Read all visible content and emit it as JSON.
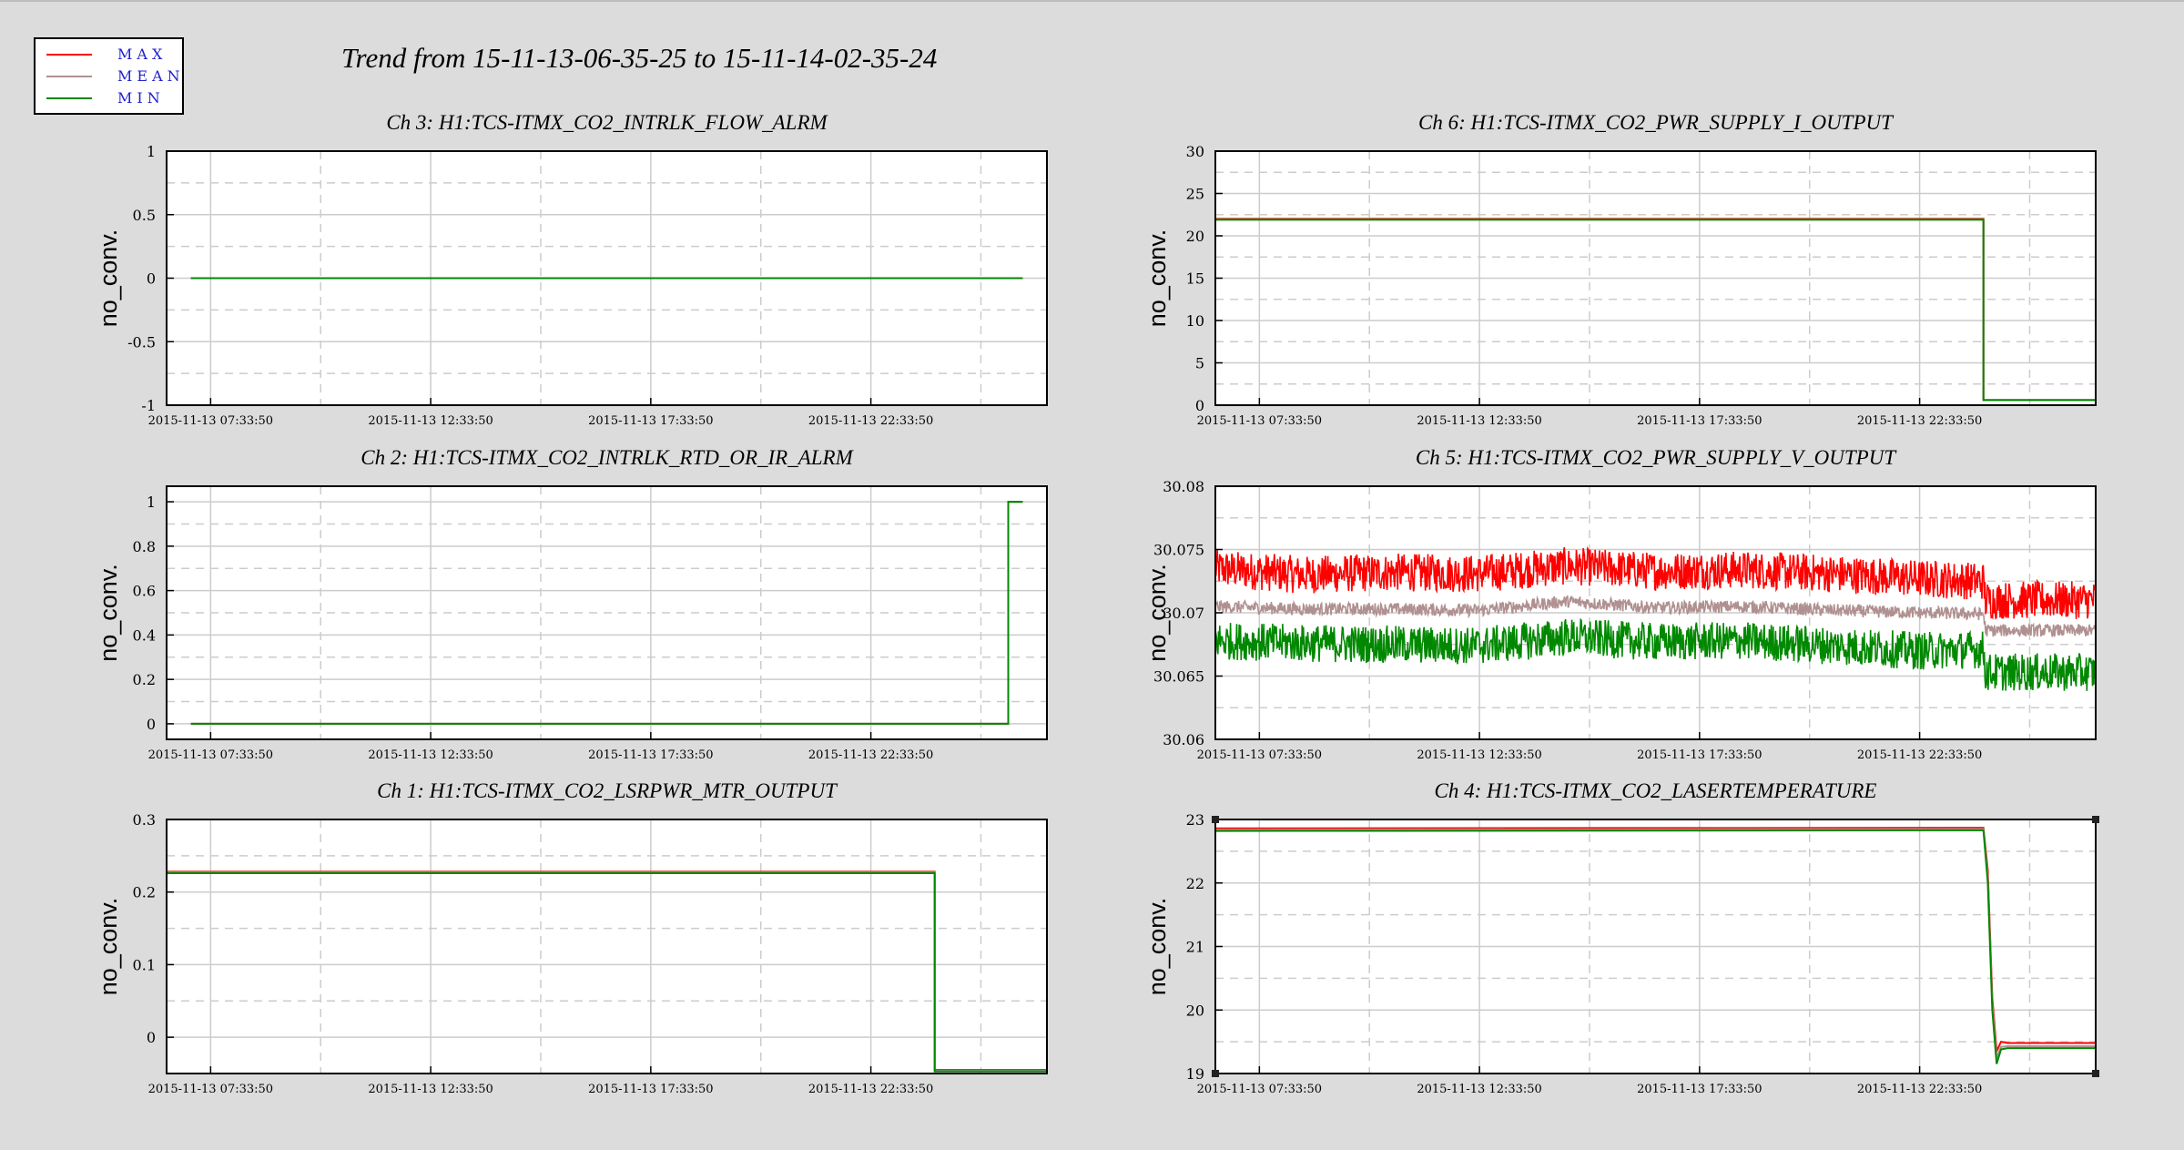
{
  "main_title": "Trend from 15-11-13-06-35-25 to 15-11-14-02-35-24",
  "legend": [
    {
      "label": "MAX",
      "color": "#ff0000"
    },
    {
      "label": "MEAN",
      "color": "#b09090"
    },
    {
      "label": "MIN",
      "color": "#008800"
    }
  ],
  "colors": {
    "max": "#ff0000",
    "mean": "#b09090",
    "min": "#008800",
    "background": "#dcdcdc",
    "grid_solid": "#cccccc",
    "grid_dashed": "#cccccc"
  },
  "chart_data": [
    {
      "type": "line",
      "title": "Ch 3: H1:TCS-ITMX_CO2_INTRLK_FLOW_ALRM",
      "ylabel": "no_conv.",
      "ylim": [
        -1,
        1
      ],
      "yticks": [
        "1",
        "0.5",
        "0",
        "-0.5",
        "-1"
      ],
      "xticks": [
        "2015-11-13 07:33:50",
        "2015-11-13 12:33:50",
        "2015-11-13 17:33:50",
        "2015-11-13 22:33:50"
      ],
      "xlim_hours": [
        -1.0,
        19.0
      ],
      "grid": true,
      "series": [
        {
          "name": "MAX",
          "x": [
            -0.45,
            18.45
          ],
          "y": [
            0,
            0
          ]
        },
        {
          "name": "MEAN",
          "x": [
            -0.45,
            18.45
          ],
          "y": [
            0,
            0
          ]
        },
        {
          "name": "MIN",
          "x": [
            -0.45,
            18.45
          ],
          "y": [
            0,
            0
          ]
        }
      ]
    },
    {
      "type": "line",
      "title": "Ch 6: H1:TCS-ITMX_CO2_PWR_SUPPLY_I_OUTPUT",
      "ylabel": "no_conv.",
      "ylim": [
        0,
        30
      ],
      "yticks": [
        "30",
        "25",
        "20",
        "15",
        "10",
        "5",
        "0"
      ],
      "xticks": [
        "2015-11-13 07:33:50",
        "2015-11-13 12:33:50",
        "2015-11-13 17:33:50",
        "2015-11-13 22:33:50"
      ],
      "xlim_hours": [
        -1.0,
        19.0
      ],
      "grid": true,
      "series": [
        {
          "name": "MAX",
          "x": [
            -1.0,
            16.45,
            16.45,
            19.0
          ],
          "y": [
            22.0,
            22.0,
            0.6,
            0.6
          ]
        },
        {
          "name": "MEAN",
          "x": [
            -1.0,
            16.45,
            16.45,
            19.0
          ],
          "y": [
            21.9,
            21.9,
            0.6,
            0.6
          ]
        },
        {
          "name": "MIN",
          "x": [
            -1.0,
            16.45,
            16.45,
            19.0
          ],
          "y": [
            21.9,
            21.9,
            0.6,
            0.6
          ]
        }
      ]
    },
    {
      "type": "line",
      "title": "Ch 2: H1:TCS-ITMX_CO2_INTRLK_RTD_OR_IR_ALRM",
      "ylabel": "no_conv.",
      "ylim": [
        -0.07,
        1.07
      ],
      "yticks": [
        "1",
        "0.8",
        "0.6",
        "0.4",
        "0.2",
        "0"
      ],
      "xticks": [
        "2015-11-13 07:33:50",
        "2015-11-13 12:33:50",
        "2015-11-13 17:33:50",
        "2015-11-13 22:33:50"
      ],
      "xlim_hours": [
        -1.0,
        19.0
      ],
      "grid": true,
      "series": [
        {
          "name": "MAX",
          "x": [
            -0.45,
            18.12,
            18.12,
            18.45
          ],
          "y": [
            0,
            0,
            1,
            1
          ]
        },
        {
          "name": "MEAN",
          "x": [
            -0.45,
            18.12,
            18.12,
            18.45
          ],
          "y": [
            0,
            0,
            1,
            1
          ]
        },
        {
          "name": "MIN",
          "x": [
            -0.45,
            18.12,
            18.12,
            18.45
          ],
          "y": [
            0,
            0,
            1,
            1
          ]
        }
      ]
    },
    {
      "type": "line",
      "title": "Ch 5: H1:TCS-ITMX_CO2_PWR_SUPPLY_V_OUTPUT",
      "ylabel": "no_conv.",
      "ylim": [
        30.06,
        30.08
      ],
      "yticks": [
        "30.08",
        "30.075",
        "30.07",
        "30.065",
        "30.06"
      ],
      "xticks": [
        "2015-11-13 07:33:50",
        "2015-11-13 12:33:50",
        "2015-11-13 17:33:50",
        "2015-11-13 22:33:50"
      ],
      "xlim_hours": [
        -1.0,
        19.0
      ],
      "grid": true,
      "series": [
        {
          "name": "MAX",
          "x": [
            -1.0,
            1.0,
            3.0,
            5.0,
            7.0,
            9.0,
            11.0,
            13.0,
            15.0,
            16.45,
            16.5,
            19.0
          ],
          "y": [
            30.0735,
            30.073,
            30.0732,
            30.0731,
            30.0737,
            30.0733,
            30.0734,
            30.0731,
            30.0727,
            30.0725,
            30.071,
            30.071
          ],
          "band": 0.0015
        },
        {
          "name": "MEAN",
          "x": [
            -1.0,
            1.0,
            3.0,
            5.0,
            7.0,
            9.0,
            11.0,
            13.0,
            15.0,
            16.45,
            16.5,
            19.0
          ],
          "y": [
            30.0705,
            30.0703,
            30.0703,
            30.0702,
            30.0709,
            30.0704,
            30.0705,
            30.0702,
            30.07,
            30.0699,
            30.0686,
            30.0686
          ],
          "band": 0.0005
        },
        {
          "name": "MIN",
          "x": [
            -1.0,
            1.0,
            3.0,
            5.0,
            7.0,
            9.0,
            11.0,
            13.0,
            15.0,
            16.45,
            16.5,
            19.0
          ],
          "y": [
            30.0678,
            30.0676,
            30.0675,
            30.0674,
            30.0681,
            30.0677,
            30.0678,
            30.0674,
            30.067,
            30.0671,
            30.0653,
            30.0653
          ],
          "band": 0.0015
        }
      ]
    },
    {
      "type": "line",
      "title": "Ch 1: H1:TCS-ITMX_CO2_LSRPWR_MTR_OUTPUT",
      "ylabel": "no_conv.",
      "ylim": [
        -0.05,
        0.3
      ],
      "yticks": [
        "0.3",
        "0.2",
        "0.1",
        "0"
      ],
      "xticks": [
        "2015-11-13 07:33:50",
        "2015-11-13 12:33:50",
        "2015-11-13 17:33:50",
        "2015-11-13 22:33:50"
      ],
      "xlim_hours": [
        -1.0,
        19.0
      ],
      "grid": true,
      "series": [
        {
          "name": "MAX",
          "x": [
            -1.0,
            16.45,
            16.45,
            19.0
          ],
          "y": [
            0.228,
            0.228,
            -0.045,
            -0.045
          ]
        },
        {
          "name": "MEAN",
          "x": [
            -1.0,
            16.45,
            16.45,
            19.0
          ],
          "y": [
            0.227,
            0.227,
            -0.046,
            -0.046
          ]
        },
        {
          "name": "MIN",
          "x": [
            -1.0,
            16.45,
            16.45,
            19.0
          ],
          "y": [
            0.226,
            0.226,
            -0.047,
            -0.047
          ]
        }
      ]
    },
    {
      "type": "line",
      "title": "Ch 4: H1:TCS-ITMX_CO2_LASERTEMPERATURE",
      "ylabel": "no_conv.",
      "ylim": [
        19,
        23
      ],
      "yticks": [
        "23",
        "22",
        "21",
        "20",
        "19"
      ],
      "xticks": [
        "2015-11-13 07:33:50",
        "2015-11-13 12:33:50",
        "2015-11-13 17:33:50",
        "2015-11-13 22:33:50"
      ],
      "xlim_hours": [
        -1.0,
        19.0
      ],
      "grid": true,
      "series": [
        {
          "name": "MAX",
          "x": [
            -1.0,
            16.45,
            16.55,
            16.65,
            16.75,
            16.85,
            17.0,
            19.0
          ],
          "y": [
            22.86,
            22.87,
            22.2,
            20.2,
            19.35,
            19.5,
            19.48,
            19.48
          ]
        },
        {
          "name": "MEAN",
          "x": [
            -1.0,
            16.45,
            16.55,
            16.65,
            16.75,
            16.85,
            17.0,
            19.0
          ],
          "y": [
            22.84,
            22.85,
            22.1,
            20.1,
            19.25,
            19.42,
            19.43,
            19.43
          ]
        },
        {
          "name": "MIN",
          "x": [
            -1.0,
            16.45,
            16.55,
            16.65,
            16.75,
            16.85,
            17.0,
            19.0
          ],
          "y": [
            22.82,
            22.83,
            22.0,
            20.0,
            19.15,
            19.38,
            19.4,
            19.4
          ]
        }
      ]
    }
  ]
}
